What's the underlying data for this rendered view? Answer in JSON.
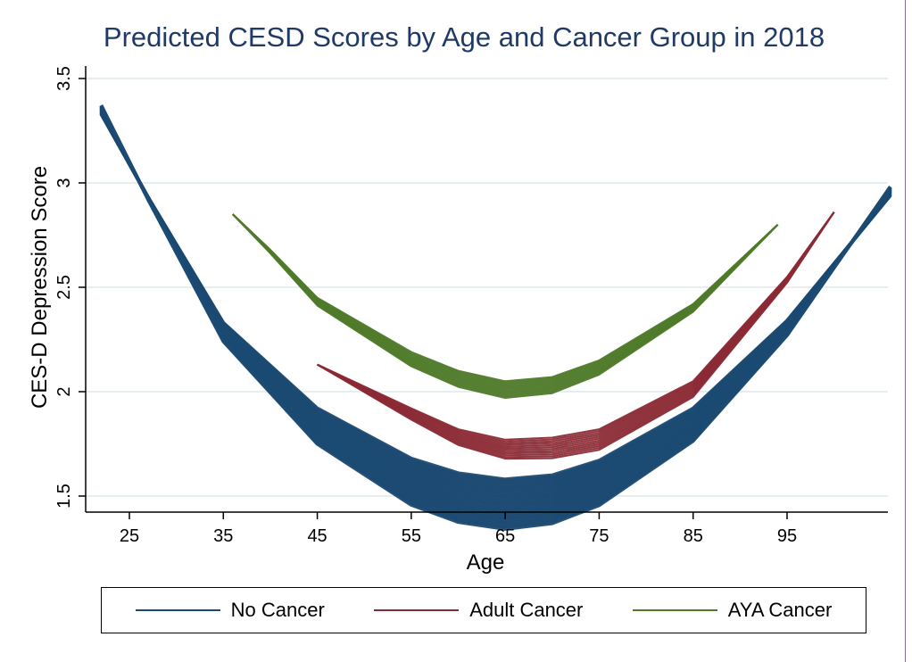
{
  "chart_data": {
    "type": "line",
    "title": "Predicted CESD Scores by Age and Cancer Group in 2018",
    "xlabel": "Age",
    "ylabel": "CES-D Depression Score",
    "xlim": [
      20,
      110
    ],
    "ylim": [
      1.5,
      3.5
    ],
    "x_ticks": [
      "25",
      "35",
      "45",
      "55",
      "65",
      "75",
      "85",
      "95"
    ],
    "y_ticks": [
      "1.5",
      "2",
      "2.5",
      "3",
      "3.5"
    ],
    "grid": true,
    "legend_position": "bottom",
    "series": [
      {
        "name": "No Cancer",
        "color": "#1b4a72",
        "x": [
          22,
          27,
          35,
          45,
          55,
          60,
          65,
          70,
          75,
          85,
          95,
          106
        ],
        "y": [
          3.33,
          2.93,
          2.33,
          1.92,
          1.68,
          1.61,
          1.58,
          1.6,
          1.67,
          1.92,
          2.34,
          2.94
        ],
        "band": [
          0.0,
          0.28
        ]
      },
      {
        "name": "Adult Cancer",
        "color": "#8b2a35",
        "x": [
          45,
          55,
          60,
          65,
          70,
          75,
          85,
          95,
          100
        ],
        "y": [
          2.13,
          1.92,
          1.82,
          1.77,
          1.78,
          1.82,
          2.05,
          2.55,
          2.86
        ],
        "band": [
          0.0,
          0.1
        ]
      },
      {
        "name": "AYA Cancer",
        "color": "#4f7a2a",
        "x": [
          36,
          40,
          45,
          55,
          60,
          65,
          70,
          75,
          85,
          94
        ],
        "y": [
          2.85,
          2.68,
          2.45,
          2.19,
          2.1,
          2.05,
          2.07,
          2.15,
          2.42,
          2.8
        ],
        "band": [
          0.0,
          0.08
        ]
      }
    ]
  },
  "page": {
    "title": "Predicted CESD Scores by Age and Cancer Group in 2018"
  }
}
